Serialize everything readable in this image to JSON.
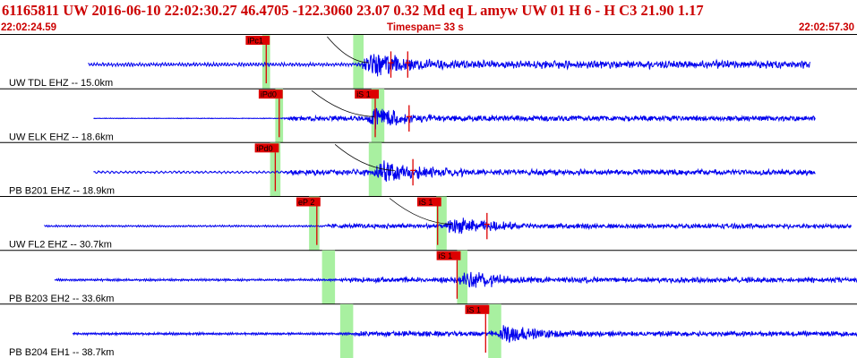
{
  "header": {
    "title": "61165811 UW 2016-06-10 22:02:30.27   46.4705 -122.3060  23.07  0.32 Md  eq  L amyw     UW 01  H   6  -  H C3   21.90  1.17"
  },
  "timebar": {
    "start": "22:02:24.59",
    "span": "Timespan=  33 s",
    "end": "22:02:57.30"
  },
  "colors": {
    "trace": "#0000ee",
    "pick": "#dd0000",
    "header_text": "#cc0000",
    "window": "#a8f0a0"
  },
  "channels": [
    {
      "label": "UW TDL EHZ -- 15.0km",
      "trace_start": 3.4,
      "trace_end": 31.2,
      "noise": 0.45,
      "onset": 13.6,
      "peak": 14.2,
      "amp": 3.2,
      "decay": 1.4,
      "noise_freq": 1.1,
      "windows": [
        [
          10.1,
          10.4
        ],
        [
          13.6,
          14.0
        ]
      ],
      "picks": [
        {
          "label": "iPc1",
          "time": 10.25,
          "type": "P",
          "height": 1
        },
        {
          "label": "",
          "time": 15.05,
          "type": "S",
          "height": 0.7
        },
        {
          "label": "",
          "time": 15.7,
          "type": "S",
          "height": 0.7
        }
      ],
      "curve": [
        [
          12.6,
          14.2
        ]
      ]
    },
    {
      "label": "UW ELK EHZ -- 18.6km",
      "trace_start": 3.6,
      "trace_end": 31.4,
      "noise": 0.08,
      "onset": 10.8,
      "peak": 14.4,
      "amp": 2.8,
      "decay": 1.2,
      "noise_freq": 2.0,
      "windows": [
        [
          10.6,
          10.9
        ],
        [
          14.3,
          14.8
        ]
      ],
      "picks": [
        {
          "label": "iPd0",
          "time": 10.75,
          "type": "P",
          "height": 1
        },
        {
          "label": "iS 1",
          "time": 14.45,
          "type": "S",
          "height": 1
        },
        {
          "label": "",
          "time": 15.75,
          "type": "S",
          "height": 0.7
        }
      ],
      "curve": [
        [
          12.0,
          14.4
        ]
      ]
    },
    {
      "label": "PB B201 EHZ -- 18.9km",
      "trace_start": 3.6,
      "trace_end": 31.4,
      "noise": 0.3,
      "onset": 10.8,
      "peak": 14.6,
      "amp": 2.6,
      "decay": 1.8,
      "noise_freq": 0.7,
      "windows": [
        [
          10.4,
          10.8
        ],
        [
          14.2,
          14.7
        ]
      ],
      "picks": [
        {
          "label": "iPd0",
          "time": 10.6,
          "type": "P",
          "height": 1
        },
        {
          "label": "",
          "time": 15.9,
          "type": "S",
          "height": 0.7
        }
      ],
      "curve": [
        [
          12.9,
          15.2
        ]
      ]
    },
    {
      "label": "UW FL2 EHZ -- 30.7km",
      "trace_start": 1.7,
      "trace_end": 32.8,
      "noise": 0.25,
      "onset": 12.3,
      "peak": 17.4,
      "amp": 2.1,
      "decay": 1.8,
      "noise_freq": 1.3,
      "windows": [
        [
          11.9,
          12.3
        ],
        [
          16.8,
          17.2
        ]
      ],
      "picks": [
        {
          "label": "eP 2",
          "time": 12.2,
          "type": "P",
          "height": 1
        },
        {
          "label": "iS 1",
          "time": 16.85,
          "type": "S",
          "height": 1
        },
        {
          "label": "",
          "time": 18.75,
          "type": "S",
          "height": 0.7
        }
      ],
      "curve": [
        [
          15.0,
          17.4
        ]
      ]
    },
    {
      "label": "PB B203 EH2 -- 33.6km",
      "trace_start": 2.1,
      "trace_end": 33.2,
      "noise": 0.3,
      "onset": 13.0,
      "peak": 17.9,
      "amp": 2.3,
      "decay": 1.5,
      "noise_freq": 1.6,
      "windows": [
        [
          12.4,
          12.9
        ],
        [
          17.6,
          18.0
        ]
      ],
      "picks": [
        {
          "label": "iS 1",
          "time": 17.6,
          "type": "S",
          "height": 1
        }
      ],
      "curve": []
    },
    {
      "label": "PB B204 EH1 -- 38.7km",
      "trace_start": 2.8,
      "trace_end": 33.8,
      "noise": 0.3,
      "onset": 13.5,
      "peak": 19.4,
      "amp": 2.3,
      "decay": 1.4,
      "noise_freq": 1.8,
      "windows": [
        [
          13.1,
          13.6
        ],
        [
          18.8,
          19.3
        ]
      ],
      "picks": [
        {
          "label": "iS 1",
          "time": 18.7,
          "type": "S",
          "height": 1
        }
      ],
      "curve": []
    }
  ]
}
